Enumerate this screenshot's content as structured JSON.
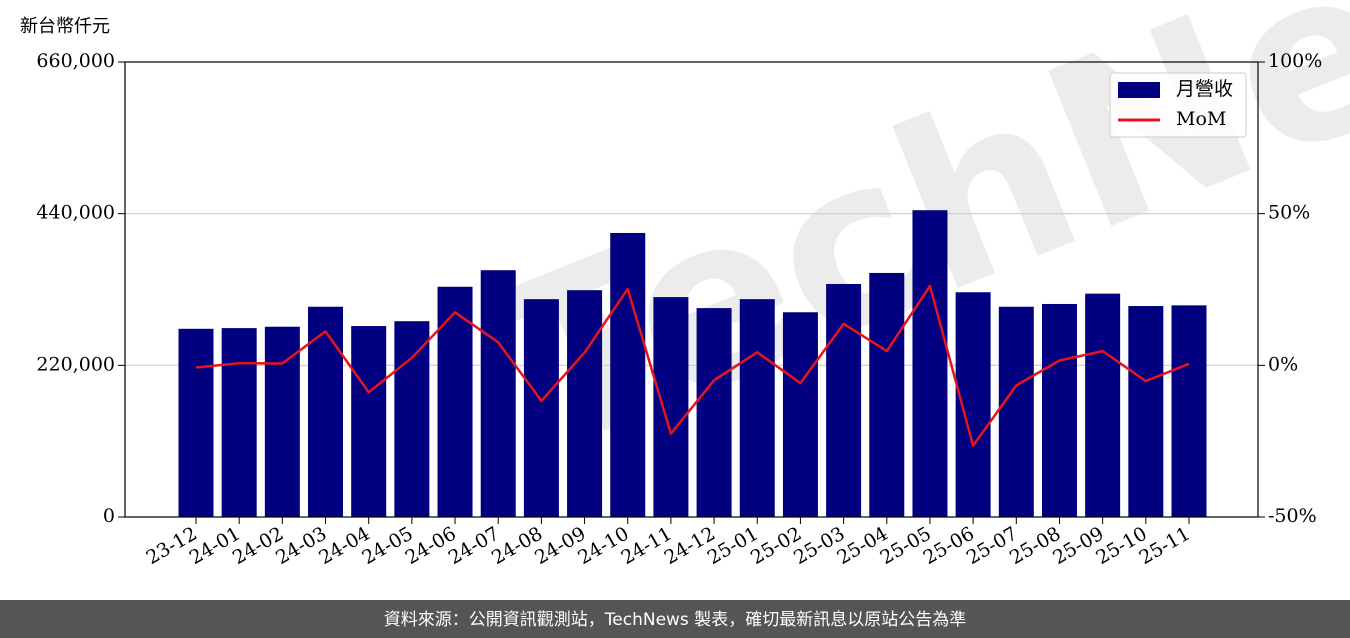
{
  "chart_data": {
    "type": "bar",
    "y_label": "新台幣仟元",
    "watermark": "TechNews",
    "footer": "資料來源：公開資訊觀測站，TechNews 製表，確切最新訊息以原站公告為準",
    "categories": [
      "23-12",
      "24-01",
      "24-02",
      "24-03",
      "24-04",
      "24-05",
      "24-06",
      "24-07",
      "24-08",
      "24-09",
      "24-10",
      "24-11",
      "24-12",
      "25-01",
      "25-02",
      "25-03",
      "25-04",
      "25-05",
      "25-06",
      "25-07",
      "25-08",
      "25-09",
      "25-10",
      "25-11"
    ],
    "series": [
      {
        "name": "月營收",
        "type": "bar",
        "color": "#000080",
        "values": [
          273000,
          274000,
          276000,
          305000,
          277000,
          284000,
          334000,
          358000,
          316000,
          329000,
          412000,
          319000,
          303000,
          316000,
          297000,
          338000,
          354000,
          445000,
          326000,
          305000,
          309000,
          324000,
          306000,
          307000
        ]
      },
      {
        "name": "MoM",
        "type": "line",
        "axis": "y2",
        "color": "#e8141c",
        "values": [
          -0.7,
          0.7,
          0.6,
          11.2,
          -8.9,
          2.5,
          17.5,
          7.6,
          -11.7,
          4.2,
          25.2,
          -22.5,
          -4.9,
          4.3,
          -5.9,
          13.7,
          4.7,
          26.2,
          -26.5,
          -6.6,
          1.6,
          4.7,
          -5.2,
          0.5
        ]
      }
    ],
    "ylim": [
      0,
      660000
    ],
    "yticks": [
      0,
      {
        "value": 220000,
        "label": "220,000"
      },
      {
        "value": 440000,
        "label": "440,000"
      },
      {
        "value": 660000,
        "label": "660,000"
      }
    ],
    "y2lim": [
      -50,
      100
    ],
    "y2ticks": [
      {
        "value": -50,
        "label": "-50%"
      },
      {
        "value": 0,
        "label": "0%"
      },
      {
        "value": 50,
        "label": "50%"
      },
      {
        "value": 100,
        "label": "100%"
      }
    ],
    "grid": true,
    "legend": "upper right"
  }
}
